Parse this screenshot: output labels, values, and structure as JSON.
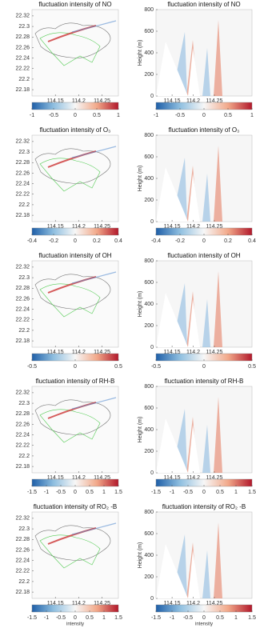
{
  "chart_data": [
    {
      "type": "heatmap",
      "title": "fluctuation intensity of NO",
      "xlim": [
        114.1,
        114.285
      ],
      "ylim": [
        22.168,
        22.332
      ],
      "xticks": [
        114.15,
        114.2,
        114.25
      ],
      "yticks": [
        22.32,
        22.3,
        22.28,
        22.26,
        22.24,
        22.22,
        22.2,
        22.18
      ],
      "colorbar": {
        "lim": [
          -1,
          1
        ],
        "ticks": [
          -1,
          -0.5,
          0,
          0.5,
          1
        ]
      }
    },
    {
      "type": "heatmap",
      "title": "fluctuation intensity of NO",
      "ylabel": "Height (m)",
      "xlim": [
        114.112,
        114.339
      ],
      "ylim": [
        0,
        800
      ],
      "xticks": [
        114.15,
        114.2,
        114.25
      ],
      "yticks": [
        0,
        200,
        400,
        600,
        800
      ],
      "colorbar": {
        "lim": [
          -1,
          1
        ],
        "ticks": [
          -1,
          -0.5,
          0,
          0.5,
          1
        ]
      }
    },
    {
      "type": "heatmap",
      "title": "fluctuation intensity of O₃",
      "xlim": [
        114.1,
        114.285
      ],
      "ylim": [
        22.168,
        22.332
      ],
      "xticks": [
        114.15,
        114.2,
        114.25
      ],
      "yticks": [
        22.32,
        22.3,
        22.28,
        22.26,
        22.24,
        22.22,
        22.2,
        22.18
      ],
      "colorbar": {
        "lim": [
          -0.4,
          0.4
        ],
        "ticks": [
          -0.4,
          -0.2,
          0,
          0.2,
          0.4
        ]
      }
    },
    {
      "type": "heatmap",
      "title": "fluctuation intensity of O₃",
      "ylabel": "Height (m)",
      "xlim": [
        114.112,
        114.339
      ],
      "ylim": [
        0,
        800
      ],
      "xticks": [
        114.15,
        114.2,
        114.25
      ],
      "yticks": [
        0,
        200,
        400,
        600,
        800
      ],
      "colorbar": {
        "lim": [
          -0.4,
          0.4
        ],
        "ticks": [
          -0.4,
          -0.2,
          0,
          0.2,
          0.4
        ]
      }
    },
    {
      "type": "heatmap",
      "title": "fluctuation intensity of OH",
      "xlim": [
        114.1,
        114.285
      ],
      "ylim": [
        22.168,
        22.332
      ],
      "xticks": [
        114.15,
        114.2,
        114.25
      ],
      "yticks": [
        22.32,
        22.3,
        22.28,
        22.26,
        22.24,
        22.22,
        22.2,
        22.18
      ],
      "colorbar": {
        "lim": [
          -0.5,
          0.5
        ],
        "ticks": [
          -0.5,
          0,
          0.5
        ]
      }
    },
    {
      "type": "heatmap",
      "title": "fluctuation intensity of OH",
      "ylabel": "Height (m)",
      "xlim": [
        114.112,
        114.339
      ],
      "ylim": [
        0,
        800
      ],
      "xticks": [
        114.15,
        114.2,
        114.25
      ],
      "yticks": [
        0,
        200,
        400,
        600,
        800
      ],
      "colorbar": {
        "lim": [
          -0.5,
          0.5
        ],
        "ticks": [
          -0.5,
          0,
          0.5
        ]
      }
    },
    {
      "type": "heatmap",
      "title": "fluctuation intensity of RH-B",
      "xlim": [
        114.1,
        114.285
      ],
      "ylim": [
        22.168,
        22.332
      ],
      "xticks": [
        114.15,
        114.2,
        114.25
      ],
      "yticks": [
        22.32,
        22.3,
        22.28,
        22.26,
        22.24,
        22.22,
        22.2,
        22.18
      ],
      "colorbar": {
        "lim": [
          -1.5,
          1.5
        ],
        "ticks": [
          -1.5,
          -1,
          -0.5,
          0,
          0.5,
          1,
          1.5
        ]
      }
    },
    {
      "type": "heatmap",
      "title": "fluctuation intensity of RH-B",
      "ylabel": "Height (m)",
      "xlim": [
        114.112,
        114.339
      ],
      "ylim": [
        0,
        800
      ],
      "xticks": [
        114.15,
        114.2,
        114.25
      ],
      "yticks": [
        0,
        200,
        400,
        600,
        800
      ],
      "colorbar": {
        "lim": [
          -1.5,
          1.5
        ],
        "ticks": [
          -1.5,
          -1,
          -0.5,
          0,
          0.5,
          1,
          1.5
        ]
      }
    },
    {
      "type": "heatmap",
      "title": "fluctuation intensity of RO₂ -B",
      "xlim": [
        114.1,
        114.285
      ],
      "ylim": [
        22.168,
        22.332
      ],
      "xticks": [
        114.15,
        114.2,
        114.25
      ],
      "yticks": [
        22.32,
        22.3,
        22.28,
        22.26,
        22.24,
        22.22,
        22.2,
        22.18
      ],
      "colorbar": {
        "lim": [
          -1.5,
          1.5
        ],
        "ticks": [
          -1.5,
          -1,
          -0.5,
          0,
          0.5,
          1,
          1.5
        ],
        "label": "intensity"
      }
    },
    {
      "type": "heatmap",
      "title": "fluctuation intensity of RO₂ -B",
      "ylabel": "Height (m)",
      "xlim": [
        114.112,
        114.339
      ],
      "ylim": [
        0,
        800
      ],
      "xticks": [
        114.15,
        114.2,
        114.25
      ],
      "yticks": [
        0,
        200,
        400,
        600,
        800
      ],
      "colorbar": {
        "lim": [
          -1.5,
          1.5
        ],
        "ticks": [
          -1.5,
          -1,
          -0.5,
          0,
          0.5,
          1,
          1.5
        ],
        "label": "intensity"
      }
    }
  ]
}
